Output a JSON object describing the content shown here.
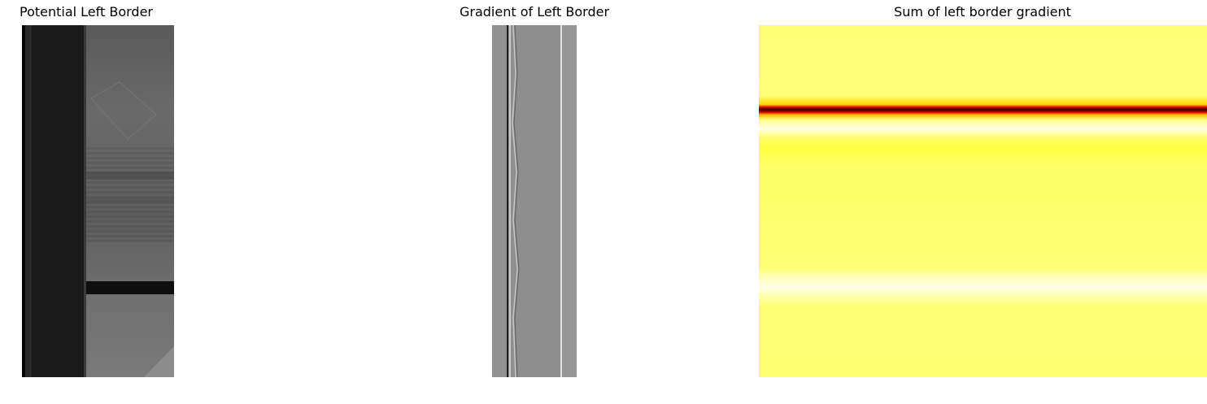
{
  "panels": [
    {
      "title": "Potential Left Border",
      "image": "grayscale-photo-left-border"
    },
    {
      "title": "Gradient of Left Border",
      "image": "gradient-image-left-border"
    },
    {
      "title": "Sum of left border gradient",
      "image": "heatmap-hot-colormap"
    }
  ],
  "colors": {
    "background": "#ffffff",
    "heatmap_base": "#ffff73",
    "heatmap_dark_band": "#3a0000",
    "gradient_gray": "#8e8e8e"
  }
}
